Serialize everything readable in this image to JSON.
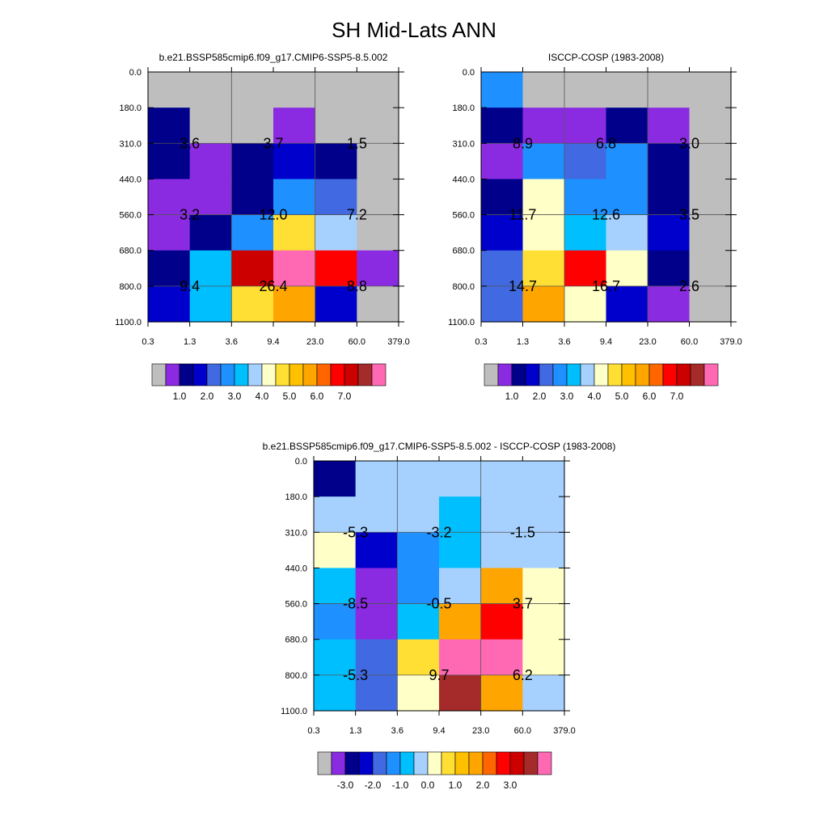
{
  "figure": {
    "title": "SH Mid-Lats ANN"
  },
  "chart_data": [
    {
      "type": "heatmap",
      "title": "b.e21.BSSP585cmip6.f09_g17.CMIP6-SSP5-8.5.002",
      "xlabel": "",
      "ylabel": "",
      "x_tick_labels": [
        "0.3",
        "1.3",
        "3.6",
        "9.4",
        "23.0",
        "60.0",
        "379.0"
      ],
      "y_tick_labels": [
        "0.0",
        "180.0",
        "310.0",
        "440.0",
        "560.0",
        "680.0",
        "800.0",
        "1100.0"
      ],
      "cell_colors": [
        [
          "#bebebe",
          "#bebebe",
          "#bebebe",
          "#bebebe",
          "#bebebe",
          "#bebebe"
        ],
        [
          "#00008b",
          "#bebebe",
          "#bebebe",
          "#8a2be2",
          "#bebebe",
          "#bebebe"
        ],
        [
          "#00008b",
          "#8a2be2",
          "#00008b",
          "#0000cd",
          "#00008b",
          "#bebebe"
        ],
        [
          "#8a2be2",
          "#8a2be2",
          "#00008b",
          "#1e90ff",
          "#4169e1",
          "#bebebe"
        ],
        [
          "#8a2be2",
          "#00008b",
          "#1e90ff",
          "#ffdf33",
          "#a6d1ff",
          "#bebebe"
        ],
        [
          "#00008b",
          "#00bfff",
          "#cd0000",
          "#ff69b4",
          "#ff0000",
          "#8a2be2"
        ],
        [
          "#0000cd",
          "#00bfff",
          "#ffdf33",
          "#ffa500",
          "#0000cd",
          "#bebebe"
        ]
      ],
      "summary_values": [
        [
          "3.6",
          "3.7",
          "1.5"
        ],
        [
          "3.2",
          "12.0",
          "7.2"
        ],
        [
          "9.4",
          "26.4",
          "8.8"
        ]
      ],
      "colorbar": {
        "colors": [
          "#bebebe",
          "#8a2be2",
          "#00008b",
          "#0000cd",
          "#4169e1",
          "#1e90ff",
          "#00bfff",
          "#a6d1ff",
          "#ffffc8",
          "#ffdf33",
          "#ffc000",
          "#ffa500",
          "#ff6600",
          "#ff0000",
          "#cd0000",
          "#a52a2a",
          "#ff69b4"
        ],
        "tick_labels": [
          "1.0",
          "2.0",
          "3.0",
          "4.0",
          "5.0",
          "6.0",
          "7.0"
        ],
        "first_tick_boundary": 2
      }
    },
    {
      "type": "heatmap",
      "title": "ISCCP-COSP (1983-2008)",
      "xlabel": "",
      "ylabel": "",
      "x_tick_labels": [
        "0.3",
        "1.3",
        "3.6",
        "9.4",
        "23.0",
        "60.0",
        "379.0"
      ],
      "y_tick_labels": [
        "0.0",
        "180.0",
        "310.0",
        "440.0",
        "560.0",
        "680.0",
        "800.0",
        "1100.0"
      ],
      "cell_colors": [
        [
          "#1e90ff",
          "#bebebe",
          "#bebebe",
          "#bebebe",
          "#bebebe",
          "#bebebe"
        ],
        [
          "#00008b",
          "#8a2be2",
          "#8a2be2",
          "#00008b",
          "#8a2be2",
          "#bebebe"
        ],
        [
          "#8a2be2",
          "#1e90ff",
          "#4169e1",
          "#1e90ff",
          "#00008b",
          "#bebebe"
        ],
        [
          "#00008b",
          "#ffffc8",
          "#1e90ff",
          "#1e90ff",
          "#00008b",
          "#bebebe"
        ],
        [
          "#0000cd",
          "#ffffc8",
          "#00bfff",
          "#a6d1ff",
          "#0000cd",
          "#bebebe"
        ],
        [
          "#4169e1",
          "#ffdf33",
          "#ff0000",
          "#ffffc8",
          "#00008b",
          "#bebebe"
        ],
        [
          "#4169e1",
          "#ffa500",
          "#ffffc8",
          "#0000cd",
          "#8a2be2",
          "#bebebe"
        ]
      ],
      "summary_values": [
        [
          "8.9",
          "6.8",
          "3.0"
        ],
        [
          "11.7",
          "12.6",
          "3.5"
        ],
        [
          "14.7",
          "16.7",
          "2.6"
        ]
      ],
      "colorbar": {
        "colors": [
          "#bebebe",
          "#8a2be2",
          "#00008b",
          "#0000cd",
          "#4169e1",
          "#1e90ff",
          "#00bfff",
          "#a6d1ff",
          "#ffffc8",
          "#ffdf33",
          "#ffc000",
          "#ffa500",
          "#ff6600",
          "#ff0000",
          "#cd0000",
          "#a52a2a",
          "#ff69b4"
        ],
        "tick_labels": [
          "1.0",
          "2.0",
          "3.0",
          "4.0",
          "5.0",
          "6.0",
          "7.0"
        ],
        "first_tick_boundary": 2
      }
    },
    {
      "type": "heatmap",
      "title": "b.e21.BSSP585cmip6.f09_g17.CMIP6-SSP5-8.5.002 - ISCCP-COSP (1983-2008)",
      "xlabel": "",
      "ylabel": "",
      "x_tick_labels": [
        "0.3",
        "1.3",
        "3.6",
        "9.4",
        "23.0",
        "60.0",
        "379.0"
      ],
      "y_tick_labels": [
        "0.0",
        "180.0",
        "310.0",
        "440.0",
        "560.0",
        "680.0",
        "800.0",
        "1100.0"
      ],
      "cell_colors": [
        [
          "#00008b",
          "#a6d1ff",
          "#a6d1ff",
          "#a6d1ff",
          "#a6d1ff",
          "#a6d1ff"
        ],
        [
          "#a6d1ff",
          "#a6d1ff",
          "#a6d1ff",
          "#00bfff",
          "#a6d1ff",
          "#a6d1ff"
        ],
        [
          "#ffffc8",
          "#0000cd",
          "#1e90ff",
          "#00bfff",
          "#a6d1ff",
          "#a6d1ff"
        ],
        [
          "#00bfff",
          "#8a2be2",
          "#1e90ff",
          "#a6d1ff",
          "#ffa500",
          "#ffffc8"
        ],
        [
          "#1e90ff",
          "#8a2be2",
          "#00bfff",
          "#ffa500",
          "#ff0000",
          "#ffffc8"
        ],
        [
          "#00bfff",
          "#4169e1",
          "#ffdf33",
          "#ff69b4",
          "#ff69b4",
          "#ffffc8"
        ],
        [
          "#00bfff",
          "#4169e1",
          "#ffffc8",
          "#a52a2a",
          "#ffa500",
          "#a6d1ff"
        ]
      ],
      "summary_values": [
        [
          "-5.3",
          "-3.2",
          "-1.5"
        ],
        [
          "-8.5",
          "-0.5",
          "3.7"
        ],
        [
          "-5.3",
          "9.7",
          "6.2"
        ]
      ],
      "colorbar": {
        "colors": [
          "#bebebe",
          "#8a2be2",
          "#00008b",
          "#0000cd",
          "#4169e1",
          "#1e90ff",
          "#00bfff",
          "#a6d1ff",
          "#ffffc8",
          "#ffdf33",
          "#ffc000",
          "#ffa500",
          "#ff6600",
          "#ff0000",
          "#cd0000",
          "#a52a2a",
          "#ff69b4"
        ],
        "tick_labels": [
          "-3.0",
          "-2.0",
          "-1.0",
          "0.0",
          "1.0",
          "2.0",
          "3.0"
        ],
        "first_tick_boundary": 2
      }
    }
  ]
}
